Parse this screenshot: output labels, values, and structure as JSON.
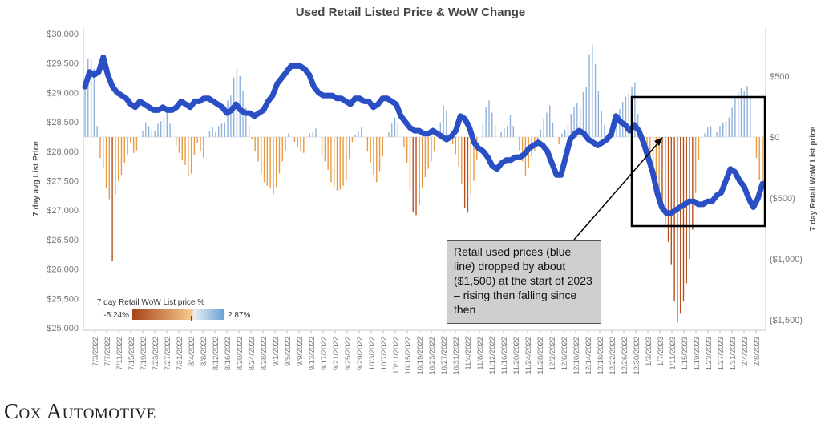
{
  "page": {
    "brand": "Cox Automotive",
    "callout": "Retail used prices (blue line) dropped by about ($1,500) at the start of 2023 – rising then falling since then"
  },
  "colors": {
    "line": "#2a4fc4",
    "bar_positive": "#8fb3db",
    "bar_negative": "#e89a45",
    "bar_negative_dark": "#b8501c",
    "legend_low": "#a8421a",
    "legend_mid": "#f5c98c",
    "legend_high": "#6a9fd6"
  },
  "chart_data": {
    "type": "bar",
    "title": "Used Retail Listed Price & WoW Change",
    "ylabel_left": "7 day avg List Price",
    "ylabel_right": "7 day Retail WoW List price",
    "ylim_left": [
      25000,
      30000
    ],
    "yticks_left": [
      "$25,000",
      "$25,500",
      "$26,000",
      "$26,500",
      "$27,000",
      "$27,500",
      "$28,000",
      "$28,500",
      "$29,000",
      "$29,500",
      "$30,000"
    ],
    "ylim_right": [
      -1500,
      600
    ],
    "yticks_right": [
      {
        "label": "$500",
        "value": 500
      },
      {
        "label": "$0",
        "value": 0
      },
      {
        "label": "($500)",
        "value": -500
      },
      {
        "label": "($1,000)",
        "value": -1000
      },
      {
        "label": "($1,500)",
        "value": -1500
      }
    ],
    "xticks": [
      "7/3/2022",
      "7/7/2022",
      "7/11/2022",
      "7/15/2022",
      "7/19/2022",
      "7/23/2022",
      "7/27/2022",
      "7/31/2022",
      "8/4/2022",
      "8/8/2022",
      "8/12/2022",
      "8/16/2022",
      "8/20/2022",
      "8/24/2022",
      "8/28/2022",
      "9/1/2022",
      "9/5/2022",
      "9/9/2022",
      "9/13/2022",
      "9/17/2022",
      "9/21/2022",
      "9/25/2022",
      "9/29/2022",
      "10/3/2022",
      "10/7/2022",
      "10/11/2022",
      "10/15/2022",
      "10/19/2022",
      "10/23/2022",
      "10/27/2022",
      "10/31/2022",
      "11/4/2022",
      "11/8/2022",
      "11/12/2022",
      "11/16/2022",
      "11/20/2022",
      "11/24/2022",
      "11/28/2022",
      "12/2/2022",
      "12/6/2022",
      "12/10/2022",
      "12/14/2022",
      "12/18/2022",
      "12/22/2022",
      "12/26/2022",
      "12/30/2022",
      "1/3/2023",
      "1/7/2023",
      "1/11/2023",
      "1/15/2023",
      "1/19/2023",
      "1/23/2023",
      "1/27/2023",
      "1/31/2023",
      "2/4/2023",
      "2/8/2023"
    ],
    "legend": {
      "title": "7 day Retail WoW List price %",
      "min_label": "-5.24%",
      "max_label": "2.87%",
      "placement": "bottom-left"
    },
    "series": [
      {
        "type": "line",
        "axis": "left",
        "points": [
          [
            0,
            29100
          ],
          [
            1,
            29350
          ],
          [
            2,
            29300
          ],
          [
            3,
            29350
          ],
          [
            4,
            29600
          ],
          [
            5,
            29300
          ],
          [
            6,
            29100
          ],
          [
            7,
            29000
          ],
          [
            8,
            28950
          ],
          [
            9,
            28900
          ],
          [
            10,
            28800
          ],
          [
            11,
            28750
          ],
          [
            12,
            28850
          ],
          [
            13,
            28800
          ],
          [
            14,
            28750
          ],
          [
            15,
            28700
          ],
          [
            16,
            28700
          ],
          [
            17,
            28750
          ],
          [
            18,
            28700
          ],
          [
            19,
            28700
          ],
          [
            20,
            28750
          ],
          [
            21,
            28850
          ],
          [
            22,
            28800
          ],
          [
            23,
            28750
          ],
          [
            24,
            28850
          ],
          [
            25,
            28850
          ],
          [
            26,
            28900
          ],
          [
            27,
            28900
          ],
          [
            28,
            28850
          ],
          [
            29,
            28800
          ],
          [
            30,
            28750
          ],
          [
            31,
            28650
          ],
          [
            32,
            28700
          ],
          [
            33,
            28800
          ],
          [
            34,
            28700
          ],
          [
            35,
            28650
          ],
          [
            36,
            28650
          ],
          [
            37,
            28600
          ],
          [
            38,
            28650
          ],
          [
            39,
            28700
          ],
          [
            40,
            28850
          ],
          [
            41,
            28950
          ],
          [
            42,
            29150
          ],
          [
            43,
            29250
          ],
          [
            44,
            29350
          ],
          [
            45,
            29450
          ],
          [
            46,
            29450
          ],
          [
            47,
            29450
          ],
          [
            48,
            29400
          ],
          [
            49,
            29300
          ],
          [
            50,
            29100
          ],
          [
            51,
            29000
          ],
          [
            52,
            28950
          ],
          [
            53,
            28950
          ],
          [
            54,
            28950
          ],
          [
            55,
            28900
          ],
          [
            56,
            28900
          ],
          [
            57,
            28850
          ],
          [
            58,
            28800
          ],
          [
            59,
            28900
          ],
          [
            60,
            28900
          ],
          [
            61,
            28850
          ],
          [
            62,
            28850
          ],
          [
            63,
            28750
          ],
          [
            64,
            28800
          ],
          [
            65,
            28900
          ],
          [
            66,
            28900
          ],
          [
            67,
            28850
          ],
          [
            68,
            28800
          ],
          [
            69,
            28600
          ],
          [
            70,
            28500
          ],
          [
            71,
            28400
          ],
          [
            72,
            28350
          ],
          [
            73,
            28350
          ],
          [
            74,
            28300
          ],
          [
            75,
            28300
          ],
          [
            76,
            28350
          ],
          [
            77,
            28300
          ],
          [
            78,
            28250
          ],
          [
            79,
            28200
          ],
          [
            80,
            28250
          ],
          [
            81,
            28350
          ],
          [
            82,
            28600
          ],
          [
            83,
            28550
          ],
          [
            84,
            28400
          ],
          [
            85,
            28150
          ],
          [
            86,
            28050
          ],
          [
            87,
            28000
          ],
          [
            88,
            27900
          ],
          [
            89,
            27750
          ],
          [
            90,
            27700
          ],
          [
            91,
            27800
          ],
          [
            92,
            27850
          ],
          [
            93,
            27850
          ],
          [
            94,
            27900
          ],
          [
            95,
            27900
          ],
          [
            96,
            27950
          ],
          [
            97,
            28050
          ],
          [
            98,
            28100
          ],
          [
            99,
            28150
          ],
          [
            100,
            28100
          ],
          [
            101,
            28000
          ],
          [
            102,
            27800
          ],
          [
            103,
            27600
          ],
          [
            104,
            27600
          ],
          [
            105,
            27900
          ],
          [
            106,
            28200
          ],
          [
            107,
            28300
          ],
          [
            108,
            28350
          ],
          [
            109,
            28300
          ],
          [
            110,
            28200
          ],
          [
            111,
            28150
          ],
          [
            112,
            28100
          ],
          [
            113,
            28150
          ],
          [
            114,
            28200
          ],
          [
            115,
            28300
          ],
          [
            116,
            28600
          ],
          [
            117,
            28500
          ],
          [
            118,
            28450
          ],
          [
            119,
            28350
          ],
          [
            120,
            28450
          ],
          [
            121,
            28350
          ],
          [
            122,
            28150
          ],
          [
            123,
            27900
          ],
          [
            124,
            27650
          ],
          [
            125,
            27300
          ],
          [
            126,
            27050
          ],
          [
            127,
            26950
          ],
          [
            128,
            26950
          ],
          [
            129,
            27000
          ],
          [
            130,
            27050
          ],
          [
            131,
            27100
          ],
          [
            132,
            27150
          ],
          [
            133,
            27150
          ],
          [
            134,
            27100
          ],
          [
            135,
            27100
          ],
          [
            136,
            27150
          ],
          [
            137,
            27150
          ],
          [
            138,
            27250
          ],
          [
            139,
            27300
          ],
          [
            140,
            27500
          ],
          [
            141,
            27700
          ],
          [
            142,
            27650
          ],
          [
            143,
            27500
          ],
          [
            144,
            27400
          ],
          [
            145,
            27200
          ],
          [
            146,
            27050
          ],
          [
            147,
            27200
          ],
          [
            148,
            27450
          ]
        ]
      },
      {
        "type": "bar",
        "axis": "right",
        "values": [
          410,
          640,
          640,
          560,
          90,
          -170,
          -260,
          -420,
          -510,
          -1020,
          -470,
          -360,
          -310,
          -210,
          -150,
          -50,
          -130,
          -110,
          0,
          50,
          120,
          90,
          60,
          50,
          110,
          130,
          160,
          210,
          110,
          0,
          -70,
          -130,
          -190,
          -230,
          -320,
          -300,
          -150,
          -50,
          -110,
          -170,
          0,
          50,
          80,
          40,
          90,
          110,
          120,
          300,
          340,
          490,
          560,
          500,
          380,
          240,
          90,
          -20,
          -120,
          -200,
          -300,
          -370,
          -400,
          -420,
          -470,
          -410,
          -300,
          -200,
          -110,
          30,
          0,
          -40,
          -80,
          -120,
          -130,
          0,
          30,
          40,
          70,
          0,
          -150,
          -200,
          -270,
          -370,
          -410,
          -440,
          -430,
          -400,
          -350,
          -180,
          -40,
          20,
          50,
          80,
          0,
          -120,
          -210,
          -310,
          -370,
          -280,
          -160,
          0,
          40,
          110,
          160,
          120,
          0,
          -80,
          -210,
          -430,
          -620,
          -640,
          -560,
          -420,
          -330,
          -260,
          -200,
          -120,
          0,
          120,
          260,
          220,
          0,
          -60,
          -140,
          -240,
          -380,
          -580,
          -620,
          -470,
          -360,
          -190,
          0,
          110,
          250,
          300,
          200,
          90,
          0,
          40,
          70,
          90,
          180,
          90,
          0,
          -110,
          -200,
          -320,
          -250,
          -160,
          -110,
          -40,
          60,
          150,
          200,
          260,
          120,
          0,
          -60,
          30,
          60,
          100,
          190,
          250,
          280,
          250,
          370,
          410,
          680,
          760,
          600,
          380,
          220,
          100,
          0,
          30,
          80,
          160,
          230,
          290,
          330,
          360,
          410,
          450,
          190,
          0,
          -70,
          -140,
          -240,
          -330,
          -420,
          -500,
          -600,
          -720,
          -860,
          -1050,
          -1350,
          -1520,
          -1450,
          -1350,
          -1200,
          -1000,
          -760,
          -460,
          -190,
          0,
          30,
          80,
          90,
          0,
          40,
          90,
          120,
          130,
          160,
          240,
          320,
          380,
          400,
          380,
          420,
          330,
          0,
          -170,
          -350,
          -430
        ]
      }
    ]
  }
}
